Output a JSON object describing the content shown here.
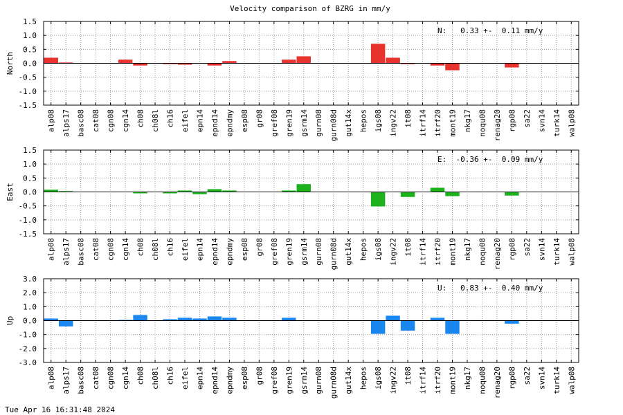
{
  "title": "Velocity comparison of BZRG in mm/y",
  "timestamp": "Tue Apr 16 16:31:48 2024",
  "chart_data": [
    {
      "type": "bar",
      "ylabel": "North",
      "annotation": "N:   0.33 +-  0.11 mm/y",
      "color": "#e8322e",
      "ylim": [
        -1.5,
        1.5
      ],
      "yticks": [
        "1.5",
        "1.0",
        "0.5",
        "0.0",
        "-0.5",
        "-1.0",
        "-1.5"
      ],
      "ytick_values": [
        1.5,
        1.0,
        0.5,
        0.0,
        -0.5,
        -1.0,
        -1.5
      ],
      "grid": true,
      "categories": [
        "alp08",
        "alps17",
        "basc08",
        "cat08",
        "cgn08",
        "cgn14",
        "ch08",
        "ch08l",
        "ch16",
        "eifel",
        "epn14",
        "epnd14",
        "epndmy",
        "esp08",
        "gr08",
        "gref08",
        "gren19",
        "gsrm14",
        "gurn08",
        "gurn08d",
        "gut14x",
        "hepos",
        "igs08",
        "ingv22",
        "it08",
        "itrf14",
        "itrf20",
        "mont19",
        "nkg17",
        "noqu08",
        "renag20",
        "rgp08",
        "sa22",
        "svn14",
        "turk14",
        "walp08"
      ],
      "values": [
        0.2,
        0.03,
        0,
        0,
        0,
        0.13,
        -0.08,
        0,
        -0.03,
        -0.05,
        0,
        -0.08,
        0.08,
        0,
        0,
        0,
        0.13,
        0.25,
        0,
        0,
        0,
        0,
        0.7,
        0.2,
        -0.03,
        0,
        -0.08,
        -0.25,
        0,
        0,
        0,
        -0.15,
        0,
        0,
        0,
        0
      ]
    },
    {
      "type": "bar",
      "ylabel": "East",
      "annotation": "E:  -0.36 +-  0.09 mm/y",
      "color": "#1db21d",
      "ylim": [
        -1.5,
        1.5
      ],
      "yticks": [
        "1.5",
        "1.0",
        "0.5",
        "0.0",
        "-0.5",
        "-1.0",
        "-1.5"
      ],
      "ytick_values": [
        1.5,
        1.0,
        0.5,
        0.0,
        -0.5,
        -1.0,
        -1.5
      ],
      "grid": true,
      "categories": [
        "alp08",
        "alps17",
        "basc08",
        "cat08",
        "cgn08",
        "cgn14",
        "ch08",
        "ch08l",
        "ch16",
        "eifel",
        "epn14",
        "epnd14",
        "epndmy",
        "esp08",
        "gr08",
        "gref08",
        "gren19",
        "gsrm14",
        "gurn08",
        "gurn08d",
        "gut14x",
        "hepos",
        "igs08",
        "ingv22",
        "it08",
        "itrf14",
        "itrf20",
        "mont19",
        "nkg17",
        "noqu08",
        "renag20",
        "rgp08",
        "sa22",
        "svn14",
        "turk14",
        "walp08"
      ],
      "values": [
        0.08,
        0.03,
        0,
        0,
        0,
        0,
        -0.05,
        0,
        -0.05,
        0.05,
        -0.08,
        0.1,
        0.05,
        0,
        0,
        0,
        0.05,
        0.28,
        0,
        0,
        0,
        0,
        -0.52,
        0,
        -0.18,
        0,
        0.15,
        -0.15,
        0,
        0,
        0,
        -0.13,
        0,
        0,
        0,
        0
      ]
    },
    {
      "type": "bar",
      "ylabel": "Up",
      "annotation": "U:   0.83 +-  0.40 mm/y",
      "color": "#1a86f0",
      "ylim": [
        -3.0,
        3.0
      ],
      "yticks": [
        "3.0",
        "2.0",
        "1.0",
        "0.0",
        "-1.0",
        "-2.0",
        "-3.0"
      ],
      "ytick_values": [
        3.0,
        2.0,
        1.0,
        0.0,
        -1.0,
        -2.0,
        -3.0
      ],
      "grid": true,
      "categories": [
        "alp08",
        "alps17",
        "basc08",
        "cat08",
        "cgn08",
        "cgn14",
        "ch08",
        "ch08l",
        "ch16",
        "eifel",
        "epn14",
        "epnd14",
        "epndmy",
        "esp08",
        "gr08",
        "gref08",
        "gren19",
        "gsrm14",
        "gurn08",
        "gurn08d",
        "gut14x",
        "hepos",
        "igs08",
        "ingv22",
        "it08",
        "itrf14",
        "itrf20",
        "mont19",
        "nkg17",
        "noqu08",
        "renag20",
        "rgp08",
        "sa22",
        "svn14",
        "turk14",
        "walp08"
      ],
      "values": [
        0.15,
        -0.42,
        0,
        0,
        0,
        0.05,
        0.4,
        0,
        0.1,
        0.2,
        0.15,
        0.3,
        0.2,
        0,
        0,
        0,
        0.2,
        0,
        0,
        0,
        0,
        0,
        -0.95,
        0.35,
        -0.72,
        0,
        0.2,
        -0.95,
        0,
        0,
        0,
        -0.22,
        0,
        0,
        0,
        0
      ]
    }
  ]
}
